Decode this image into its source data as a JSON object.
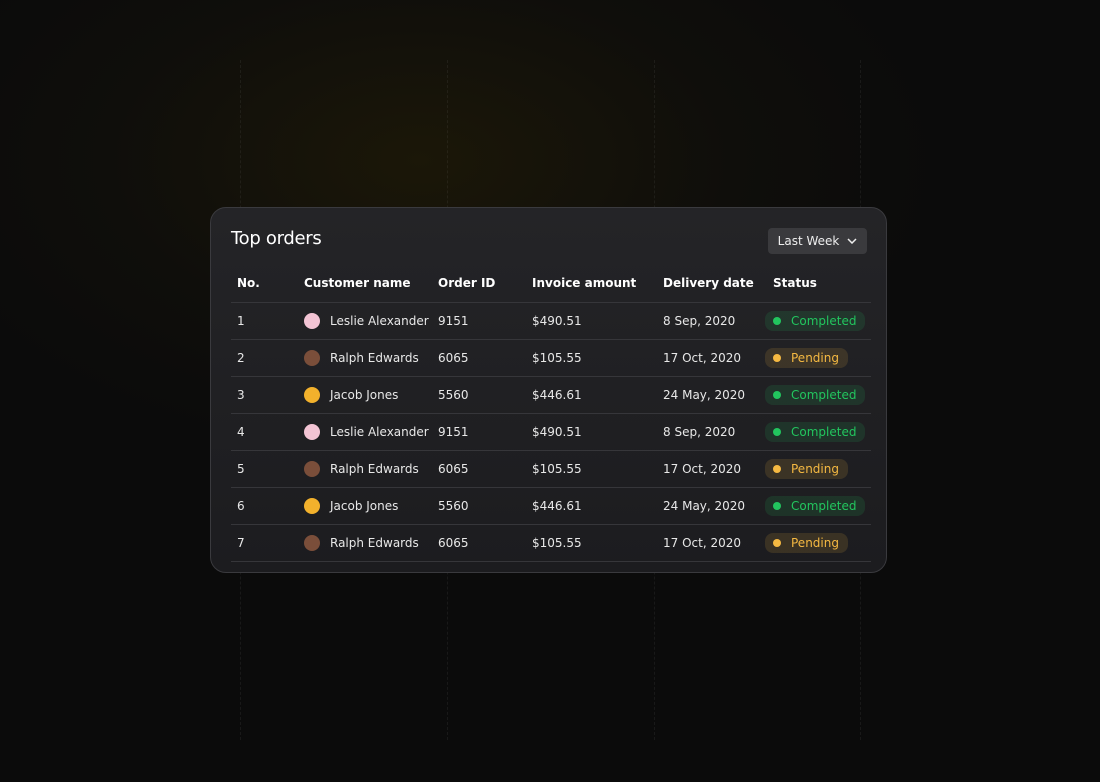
{
  "header": {
    "title": "Top orders",
    "filter": "Last Week"
  },
  "table": {
    "columns": [
      "No.",
      "Customer name",
      "Order ID",
      "Invoice amount",
      "Delivery date",
      "Status"
    ],
    "rows": [
      {
        "no": "1",
        "customer": "Leslie Alexander",
        "order_id": "9151",
        "amount": "$490.51",
        "date": "8 Sep, 2020",
        "status": "Completed",
        "status_color": "#22c55e"
      },
      {
        "no": "2",
        "customer": "Ralph Edwards",
        "order_id": "6065",
        "amount": "$105.55",
        "date": "17 Oct, 2020",
        "status": "Pending",
        "status_color": "#f5b942"
      },
      {
        "no": "3",
        "customer": "Jacob Jones",
        "order_id": "5560",
        "amount": "$446.61",
        "date": "24 May, 2020",
        "status": "Completed",
        "status_color": "#22c55e"
      },
      {
        "no": "4",
        "customer": "Leslie Alexander",
        "order_id": "9151",
        "amount": "$490.51",
        "date": "8 Sep, 2020",
        "status": "Completed",
        "status_color": "#22c55e"
      },
      {
        "no": "5",
        "customer": "Ralph Edwards",
        "order_id": "6065",
        "amount": "$105.55",
        "date": "17 Oct, 2020",
        "status": "Pending",
        "status_color": "#f5b942"
      },
      {
        "no": "6",
        "customer": "Jacob Jones",
        "order_id": "5560",
        "amount": "$446.61",
        "date": "24 May, 2020",
        "status": "Completed",
        "status_color": "#22c55e"
      },
      {
        "no": "7",
        "customer": "Ralph Edwards",
        "order_id": "6065",
        "amount": "$105.55",
        "date": "17 Oct, 2020",
        "status": "Pending",
        "status_color": "#f5b942"
      }
    ]
  }
}
